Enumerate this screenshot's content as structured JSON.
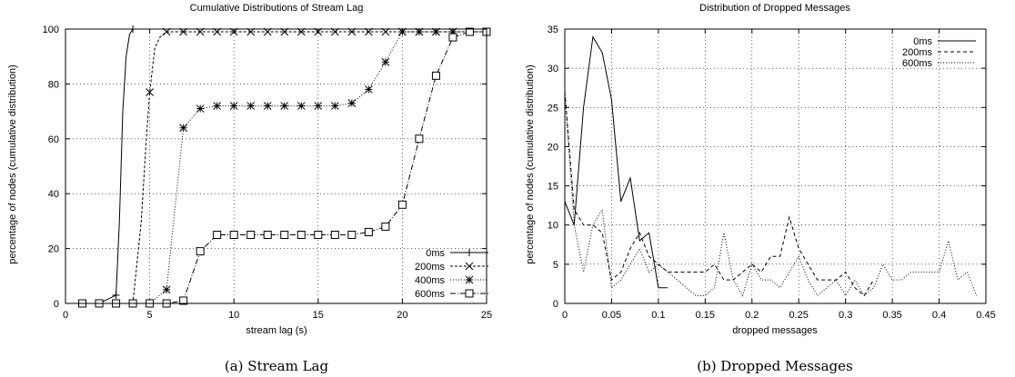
{
  "chart_data": [
    {
      "type": "line",
      "title": "Cumulative Distributions of Stream Lag",
      "xlabel": "stream lag (s)",
      "ylabel": "percentage of nodes (cumulative distribution)",
      "caption": "(a) Stream Lag",
      "xlim": [
        0,
        25
      ],
      "ylim": [
        0,
        100
      ],
      "xticks": [
        0,
        5,
        10,
        15,
        20,
        25
      ],
      "yticks": [
        0,
        20,
        40,
        60,
        80,
        100
      ],
      "grid": true,
      "legend_position": "bottom-right",
      "series": [
        {
          "name": "0ms",
          "dash": "",
          "marker": "plus",
          "marker_x": [
            1,
            2,
            3,
            4
          ],
          "x": [
            1,
            2,
            3,
            3.2,
            3.4,
            3.6,
            3.8,
            4,
            4.2,
            5,
            10,
            25
          ],
          "y": [
            0,
            0,
            3,
            30,
            70,
            90,
            98,
            100,
            100,
            100,
            100,
            100
          ]
        },
        {
          "name": "200ms",
          "dash": "3 2",
          "marker": "cross",
          "marker_x": [
            1,
            2,
            3,
            4,
            5,
            6,
            7,
            8,
            9,
            10,
            11,
            12,
            13,
            14,
            15,
            16,
            17,
            18,
            19,
            20,
            21,
            22,
            23,
            24,
            25
          ],
          "x": [
            1,
            2,
            3,
            4,
            4.5,
            4.8,
            5,
            5.3,
            5.6,
            6,
            7,
            8,
            9,
            10,
            11,
            12,
            13,
            14,
            15,
            16,
            17,
            18,
            19,
            20,
            21,
            22,
            23,
            24,
            25
          ],
          "y": [
            0,
            0,
            0,
            0,
            30,
            60,
            77,
            93,
            97,
            99,
            99,
            99,
            99,
            99,
            99,
            99,
            99,
            99,
            99,
            99,
            99,
            99,
            99,
            99,
            99,
            99,
            99,
            99,
            99
          ]
        },
        {
          "name": "400ms",
          "dash": "1 2",
          "marker": "star",
          "marker_x": [
            1,
            2,
            3,
            4,
            5,
            6,
            7,
            8,
            9,
            10,
            11,
            12,
            13,
            14,
            15,
            16,
            17,
            18,
            19,
            20,
            21,
            22,
            23,
            24,
            25
          ],
          "x": [
            1,
            2,
            3,
            4,
            5,
            6,
            7,
            8,
            9,
            10,
            11,
            12,
            13,
            14,
            15,
            16,
            17,
            18,
            19,
            20,
            21,
            22,
            23,
            24,
            25
          ],
          "y": [
            0,
            0,
            0,
            0,
            0,
            5,
            64,
            71,
            72,
            72,
            72,
            72,
            72,
            72,
            72,
            72,
            73,
            78,
            88,
            99,
            99,
            99,
            99,
            99,
            99
          ]
        },
        {
          "name": "600ms",
          "dash": "6 2 1 2",
          "marker": "square",
          "marker_x": [
            1,
            2,
            3,
            4,
            5,
            6,
            7,
            8,
            9,
            10,
            11,
            12,
            13,
            14,
            15,
            16,
            17,
            18,
            19,
            20,
            21,
            22,
            23,
            24,
            25
          ],
          "x": [
            1,
            2,
            3,
            4,
            5,
            6,
            7,
            8,
            9,
            10,
            11,
            12,
            13,
            14,
            15,
            16,
            17,
            18,
            19,
            20,
            21,
            22,
            23,
            24,
            25
          ],
          "y": [
            0,
            0,
            0,
            0,
            0,
            0,
            1,
            19,
            25,
            25,
            25,
            25,
            25,
            25,
            25,
            25,
            25,
            26,
            28,
            36,
            60,
            83,
            97,
            99,
            99
          ]
        }
      ]
    },
    {
      "type": "line",
      "title": "Distribution of Dropped Messages",
      "xlabel": "dropped messages",
      "ylabel": "percentage of nodes (cumulative distribution)",
      "caption": "(b) Dropped Messages",
      "xlim": [
        0,
        0.45
      ],
      "ylim": [
        0,
        35
      ],
      "xticks": [
        "0",
        "0.05",
        "0.1",
        "0.15",
        "0.2",
        "0.25",
        "0.3",
        "0.35",
        "0.4",
        "0.45"
      ],
      "yticks": [
        0,
        5,
        10,
        15,
        20,
        25,
        30,
        35
      ],
      "grid": true,
      "legend_position": "top-right",
      "series": [
        {
          "name": "0ms",
          "dash": "",
          "x": [
            0,
            0.01,
            0.02,
            0.03,
            0.04,
            0.05,
            0.06,
            0.07,
            0.08,
            0.09,
            0.1,
            0.11
          ],
          "y": [
            13,
            10,
            25,
            34,
            32,
            26,
            13,
            16,
            8,
            9,
            2,
            2
          ]
        },
        {
          "name": "200ms",
          "dash": "4 3",
          "x": [
            0,
            0.01,
            0.02,
            0.03,
            0.04,
            0.05,
            0.06,
            0.07,
            0.08,
            0.09,
            0.1,
            0.11,
            0.12,
            0.13,
            0.14,
            0.15,
            0.16,
            0.17,
            0.18,
            0.19,
            0.2,
            0.21,
            0.22,
            0.23,
            0.24,
            0.25,
            0.26,
            0.27,
            0.28,
            0.29,
            0.3,
            0.31,
            0.32,
            0.33
          ],
          "y": [
            27,
            12,
            10,
            10,
            9,
            3,
            4,
            7,
            9,
            6,
            5,
            4,
            4,
            4,
            4,
            4,
            5,
            3,
            3,
            4,
            5,
            4,
            6,
            6,
            11,
            7,
            5,
            3,
            3,
            3,
            4,
            2,
            1,
            3
          ]
        },
        {
          "name": "600ms",
          "dash": "1 2",
          "x": [
            0,
            0.01,
            0.02,
            0.03,
            0.04,
            0.05,
            0.06,
            0.07,
            0.08,
            0.09,
            0.1,
            0.11,
            0.12,
            0.13,
            0.14,
            0.15,
            0.16,
            0.17,
            0.18,
            0.19,
            0.2,
            0.21,
            0.22,
            0.23,
            0.24,
            0.25,
            0.26,
            0.27,
            0.28,
            0.29,
            0.3,
            0.31,
            0.32,
            0.33,
            0.34,
            0.35,
            0.36,
            0.37,
            0.38,
            0.39,
            0.4,
            0.41,
            0.42,
            0.43,
            0.44
          ],
          "y": [
            27,
            10,
            4,
            10,
            12,
            2,
            3,
            5,
            7,
            4,
            5,
            4,
            3,
            2,
            1,
            1,
            2,
            9,
            3,
            1,
            5,
            3,
            3,
            2,
            4,
            6,
            3,
            1,
            2,
            3,
            1,
            3,
            1,
            2,
            5,
            3,
            3,
            4,
            4,
            4,
            4,
            8,
            3,
            4,
            1
          ]
        }
      ]
    }
  ]
}
